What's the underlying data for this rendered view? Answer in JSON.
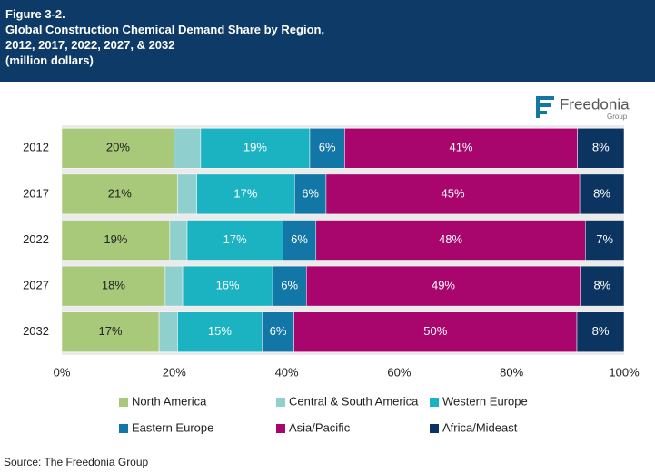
{
  "chart_data": {
    "type": "stacked-bar-horizontal",
    "figure": "Figure 3-2.",
    "title": "Global Construction Chemical Demand Share by Region, 2012, 2017, 2022, 2027, & 2032",
    "subtitle": "(million dollars)",
    "brand": "Freedonia",
    "brand_sub": "Group",
    "source": "Source: The Freedonia Group",
    "categories": [
      "2012",
      "2017",
      "2022",
      "2027",
      "2032"
    ],
    "series": [
      {
        "name": "North America",
        "color": "#a8c87a",
        "values": [
          20.0,
          20.6,
          19.2,
          18.4,
          17.3
        ],
        "value_labels": [
          "20%",
          "21%",
          "19%",
          "18%",
          "17%"
        ]
      },
      {
        "name": "Central & South America",
        "color": "#8fd0cf",
        "values": [
          4.7,
          3.4,
          3.1,
          3.1,
          3.3
        ]
      },
      {
        "name": "Western Europe",
        "color": "#1bb3c1",
        "values": [
          19.4,
          17.4,
          17.0,
          16.0,
          15.0
        ],
        "value_labels": [
          "19%",
          "17%",
          "17%",
          "16%",
          "15%"
        ]
      },
      {
        "name": "Eastern Europe",
        "color": "#1276a7",
        "values": [
          6.2,
          5.6,
          5.9,
          6.0,
          5.7
        ],
        "value_labels": [
          "6%",
          "6%",
          "6%",
          "6%",
          "6%"
        ]
      },
      {
        "name": "Asia/Pacific",
        "color": "#a8066d",
        "values": [
          41.4,
          45.1,
          47.9,
          48.7,
          50.3
        ],
        "value_labels": [
          "41%",
          "45%",
          "48%",
          "49%",
          "50%"
        ]
      },
      {
        "name": "Africa/Mideast",
        "color": "#0c3461",
        "values": [
          8.3,
          7.9,
          6.9,
          7.8,
          8.4
        ],
        "value_labels": [
          "8%",
          "8%",
          "7%",
          "8%",
          "8%"
        ]
      }
    ],
    "xlim": [
      0,
      100
    ],
    "xticks": [
      {
        "value": 0,
        "label": "0%"
      },
      {
        "value": 20,
        "label": "20%"
      },
      {
        "value": 40,
        "label": "40%"
      },
      {
        "value": 60,
        "label": "60%"
      },
      {
        "value": 80,
        "label": "80%"
      },
      {
        "value": 100,
        "label": "100%"
      }
    ],
    "legend": "bottom"
  }
}
